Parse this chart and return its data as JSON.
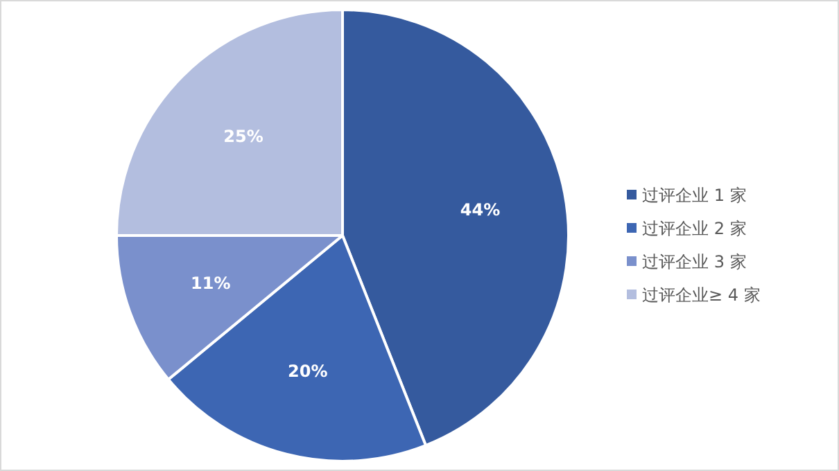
{
  "chart_data": {
    "type": "pie",
    "categories": [
      "过评企业 1 家",
      "过评企业 2 家",
      "过评企业 3 家",
      "过评企业≥ 4 家"
    ],
    "values": [
      44,
      20,
      11,
      25
    ],
    "colors": [
      "#355a9e",
      "#3d66b3",
      "#7a90cc",
      "#b3bedf"
    ],
    "value_labels": [
      "44%",
      "20%",
      "11%",
      "25%"
    ],
    "legend": "right"
  }
}
